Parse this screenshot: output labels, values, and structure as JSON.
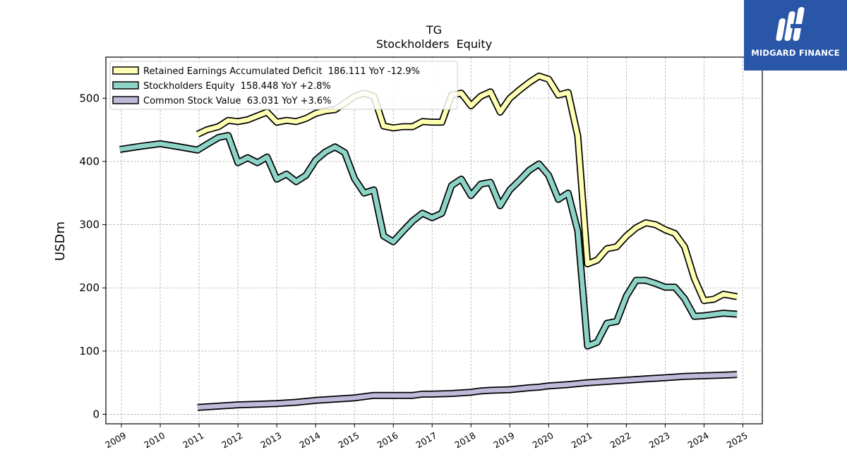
{
  "brand": {
    "name": "MIDGARD FINANCE",
    "color": "#2a56a8"
  },
  "chart_data": {
    "type": "line",
    "title": "TG",
    "subtitle": "Stockholders  Equity",
    "xlabel": "",
    "ylabel": "USDm",
    "xlim": [
      2008.6,
      2025.5
    ],
    "ylim": [
      -15,
      565
    ],
    "yticks": [
      0,
      100,
      200,
      300,
      400,
      500
    ],
    "xticks": [
      "2009",
      "2010",
      "2011",
      "2012",
      "2013",
      "2014",
      "2015",
      "2016",
      "2017",
      "2018",
      "2019",
      "2020",
      "2021",
      "2022",
      "2023",
      "2024",
      "2025"
    ],
    "grid": true,
    "legend_position": "top-left",
    "series": [
      {
        "name": "Retained Earnings Accumulated Deficit  186.111 YoY -12.9%",
        "color": "#ffffb3",
        "x": [
          2010.96,
          2011.2,
          2011.5,
          2011.75,
          2012.0,
          2012.25,
          2012.5,
          2012.75,
          2013.0,
          2013.25,
          2013.5,
          2013.75,
          2014.0,
          2014.25,
          2014.5,
          2014.75,
          2015.0,
          2015.25,
          2015.5,
          2015.75,
          2016.0,
          2016.25,
          2016.5,
          2016.75,
          2017.0,
          2017.25,
          2017.5,
          2017.75,
          2018.0,
          2018.25,
          2018.5,
          2018.75,
          2019.0,
          2019.25,
          2019.5,
          2019.75,
          2020.0,
          2020.25,
          2020.5,
          2020.75,
          2021.0,
          2021.25,
          2021.5,
          2021.75,
          2022.0,
          2022.25,
          2022.5,
          2022.75,
          2023.0,
          2023.25,
          2023.5,
          2023.75,
          2024.0,
          2024.25,
          2024.5,
          2024.85
        ],
        "values": [
          443,
          450,
          455,
          465,
          463,
          466,
          472,
          478,
          462,
          465,
          463,
          468,
          476,
          480,
          482,
          492,
          503,
          508,
          503,
          456,
          453,
          455,
          455,
          463,
          462,
          462,
          505,
          508,
          488,
          503,
          510,
          478,
          500,
          513,
          525,
          535,
          530,
          505,
          509,
          440,
          238,
          244,
          262,
          265,
          282,
          295,
          303,
          300,
          292,
          286,
          265,
          215,
          180,
          182,
          190,
          186.1
        ]
      },
      {
        "name": "Stockholders Equity  158.448 YoY +2.8%",
        "color": "#8dd3c7",
        "x": [
          2008.96,
          2009.5,
          2010.0,
          2010.5,
          2010.96,
          2011.2,
          2011.5,
          2011.75,
          2012.0,
          2012.25,
          2012.5,
          2012.75,
          2013.0,
          2013.25,
          2013.5,
          2013.75,
          2014.0,
          2014.25,
          2014.5,
          2014.75,
          2015.0,
          2015.25,
          2015.5,
          2015.75,
          2016.0,
          2016.25,
          2016.5,
          2016.75,
          2017.0,
          2017.25,
          2017.5,
          2017.75,
          2018.0,
          2018.25,
          2018.5,
          2018.75,
          2019.0,
          2019.25,
          2019.5,
          2019.75,
          2020.0,
          2020.25,
          2020.5,
          2020.75,
          2021.0,
          2021.25,
          2021.5,
          2021.75,
          2022.0,
          2022.25,
          2022.5,
          2022.75,
          2023.0,
          2023.25,
          2023.5,
          2023.75,
          2024.0,
          2024.25,
          2024.5,
          2024.85
        ],
        "values": [
          419,
          424,
          428,
          423,
          418,
          427,
          438,
          441,
          398,
          406,
          398,
          407,
          372,
          380,
          368,
          378,
          402,
          415,
          423,
          414,
          373,
          350,
          355,
          282,
          273,
          290,
          306,
          318,
          311,
          318,
          362,
          372,
          346,
          364,
          367,
          330,
          355,
          370,
          386,
          396,
          378,
          340,
          350,
          290,
          108,
          114,
          144,
          147,
          187,
          212,
          212,
          207,
          201,
          201,
          183,
          155,
          156,
          158,
          160,
          158.4
        ]
      },
      {
        "name": "Common Stock Value  63.031 YoY +3.6%",
        "color": "#bebada",
        "x": [
          2010.96,
          2011.5,
          2012.0,
          2012.5,
          2013.0,
          2013.5,
          2014.0,
          2014.5,
          2015.0,
          2015.5,
          2016.0,
          2016.5,
          2016.75,
          2017.0,
          2017.5,
          2018.0,
          2018.25,
          2018.5,
          2019.0,
          2019.5,
          2019.75,
          2020.0,
          2020.5,
          2021.0,
          2021.5,
          2022.0,
          2022.5,
          2023.0,
          2023.5,
          2024.0,
          2024.5,
          2024.85
        ],
        "values": [
          11,
          13,
          15,
          16,
          17,
          19,
          22,
          24,
          26,
          30,
          30,
          30,
          32,
          32,
          33,
          35,
          37,
          38,
          39,
          42,
          43,
          45,
          47,
          50,
          52,
          54,
          56,
          58,
          60,
          61,
          62,
          63.0
        ]
      }
    ]
  }
}
